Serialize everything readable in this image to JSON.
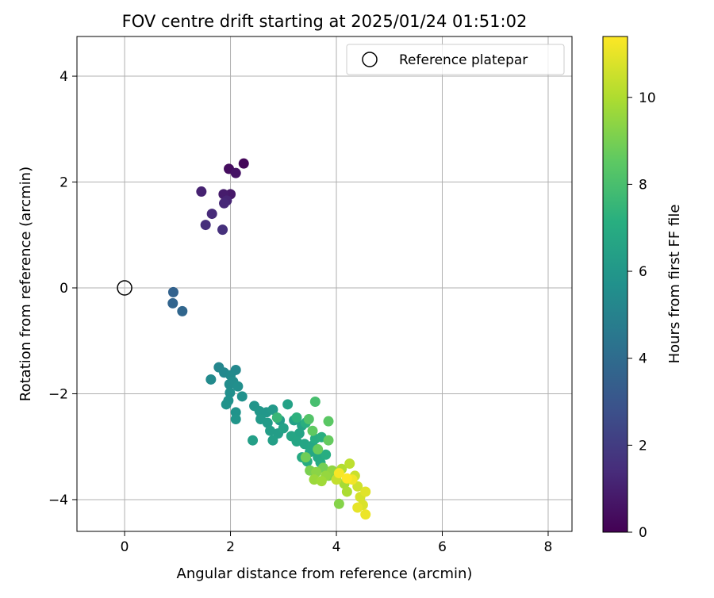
{
  "chart_data": {
    "type": "scatter",
    "title": "FOV centre drift starting at 2025/01/24 01:51:02",
    "xlabel": "Angular distance from reference (arcmin)",
    "ylabel": "Rotation from reference (arcmin)",
    "xlim": [
      -0.9,
      8.45
    ],
    "ylim": [
      -4.6,
      4.75
    ],
    "xticks": [
      0,
      2,
      4,
      6,
      8
    ],
    "yticks": [
      -4,
      -2,
      0,
      2,
      4
    ],
    "xticklabels": [
      "0",
      "2",
      "4",
      "6",
      "8"
    ],
    "yticklabels": [
      "−4",
      "−2",
      "0",
      "2",
      "4"
    ],
    "grid": true,
    "legend": {
      "position": "top-right",
      "entries": [
        "Reference platepar"
      ]
    },
    "colormap": "viridis",
    "colorbar": {
      "label": "Hours from first FF file",
      "range": [
        0,
        11.4
      ],
      "ticks": [
        0,
        2,
        4,
        6,
        8,
        10
      ],
      "ticklabels": [
        "0",
        "2",
        "4",
        "6",
        "8",
        "10"
      ]
    },
    "reference": {
      "x": 0,
      "y": 0
    },
    "points": [
      [
        2.25,
        2.35,
        0.2
      ],
      [
        1.97,
        2.25,
        0.4
      ],
      [
        2.1,
        2.17,
        0.6
      ],
      [
        2.0,
        1.77,
        0.8
      ],
      [
        1.87,
        1.77,
        0.9
      ],
      [
        1.45,
        1.82,
        1.1
      ],
      [
        1.93,
        1.65,
        1.2
      ],
      [
        1.88,
        1.6,
        1.3
      ],
      [
        1.65,
        1.4,
        1.4
      ],
      [
        1.53,
        1.19,
        1.5
      ],
      [
        1.85,
        1.1,
        1.6
      ],
      [
        0.92,
        -0.08,
        3.6
      ],
      [
        0.91,
        -0.29,
        3.7
      ],
      [
        1.09,
        -0.44,
        3.8
      ],
      [
        1.78,
        -1.5,
        5.2
      ],
      [
        1.88,
        -1.6,
        5.3
      ],
      [
        2.1,
        -1.55,
        5.3
      ],
      [
        1.63,
        -1.73,
        5.4
      ],
      [
        2.0,
        -1.65,
        5.4
      ],
      [
        2.05,
        -1.77,
        5.5
      ],
      [
        1.98,
        -1.82,
        5.5
      ],
      [
        2.14,
        -1.86,
        5.6
      ],
      [
        1.99,
        -1.98,
        5.6
      ],
      [
        2.22,
        -2.05,
        5.7
      ],
      [
        1.96,
        -2.13,
        5.7
      ],
      [
        1.92,
        -2.2,
        5.8
      ],
      [
        2.1,
        -2.35,
        5.8
      ],
      [
        2.1,
        -2.48,
        5.9
      ],
      [
        2.45,
        -2.23,
        5.9
      ],
      [
        2.55,
        -2.33,
        6.0
      ],
      [
        2.68,
        -2.35,
        6.0
      ],
      [
        2.8,
        -2.3,
        6.1
      ],
      [
        2.57,
        -2.48,
        6.1
      ],
      [
        2.7,
        -2.55,
        6.2
      ],
      [
        2.93,
        -2.5,
        6.2
      ],
      [
        2.75,
        -2.7,
        6.3
      ],
      [
        2.9,
        -2.75,
        6.3
      ],
      [
        2.8,
        -2.88,
        6.4
      ],
      [
        2.42,
        -2.88,
        6.4
      ],
      [
        3.0,
        -2.65,
        6.5
      ],
      [
        3.08,
        -2.2,
        6.5
      ],
      [
        3.2,
        -2.5,
        6.5
      ],
      [
        3.35,
        -2.6,
        6.6
      ],
      [
        3.3,
        -2.75,
        6.6
      ],
      [
        3.15,
        -2.8,
        6.7
      ],
      [
        3.25,
        -2.9,
        6.7
      ],
      [
        3.4,
        -2.95,
        6.7
      ],
      [
        3.55,
        -2.98,
        6.8
      ],
      [
        3.5,
        -3.1,
        6.8
      ],
      [
        3.65,
        -3.2,
        6.9
      ],
      [
        3.35,
        -3.2,
        6.9
      ],
      [
        3.45,
        -3.28,
        7.0
      ],
      [
        3.7,
        -3.3,
        7.0
      ],
      [
        3.8,
        -3.15,
        7.1
      ],
      [
        3.6,
        -2.85,
        7.1
      ],
      [
        3.72,
        -2.82,
        7.2
      ],
      [
        3.42,
        -2.55,
        7.2
      ],
      [
        3.25,
        -2.45,
        7.3
      ],
      [
        2.88,
        -2.45,
        7.6
      ],
      [
        3.6,
        -2.15,
        8.0
      ],
      [
        3.48,
        -2.48,
        8.3
      ],
      [
        3.85,
        -2.52,
        8.5
      ],
      [
        3.55,
        -2.7,
        8.6
      ],
      [
        3.85,
        -2.88,
        8.7
      ],
      [
        3.65,
        -3.05,
        8.8
      ],
      [
        3.42,
        -3.2,
        8.9
      ],
      [
        3.75,
        -3.4,
        9.0
      ],
      [
        3.5,
        -3.45,
        9.1
      ],
      [
        3.85,
        -3.55,
        9.2
      ],
      [
        4.05,
        -4.08,
        9.3
      ],
      [
        3.62,
        -3.48,
        9.4
      ],
      [
        3.92,
        -3.45,
        9.5
      ],
      [
        3.8,
        -3.55,
        9.6
      ],
      [
        3.58,
        -3.62,
        9.7
      ],
      [
        3.72,
        -3.65,
        9.8
      ],
      [
        4.15,
        -3.7,
        9.9
      ],
      [
        4.2,
        -3.85,
        10.0
      ],
      [
        4.1,
        -3.42,
        10.1
      ],
      [
        4.25,
        -3.32,
        10.3
      ],
      [
        4.0,
        -3.62,
        10.4
      ],
      [
        4.35,
        -3.55,
        10.5
      ],
      [
        4.4,
        -3.75,
        10.6
      ],
      [
        4.45,
        -3.95,
        10.7
      ],
      [
        4.5,
        -4.1,
        10.8
      ],
      [
        4.55,
        -3.85,
        10.9
      ],
      [
        4.4,
        -4.15,
        11.0
      ],
      [
        4.55,
        -4.28,
        11.1
      ],
      [
        4.3,
        -3.62,
        11.2
      ],
      [
        4.05,
        -3.5,
        11.3
      ],
      [
        4.2,
        -3.6,
        11.4
      ]
    ]
  }
}
